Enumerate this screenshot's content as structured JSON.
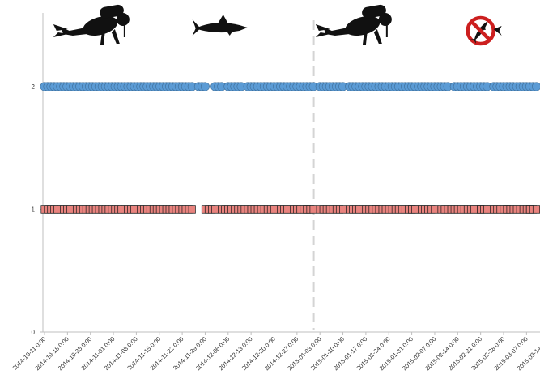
{
  "chart_data": {
    "type": "scatter",
    "xlim": [
      "2014-10-11",
      "2015-03-19"
    ],
    "ylim": [
      0,
      2.6
    ],
    "y_ticks": [
      "0",
      "1",
      "2"
    ],
    "x_tick_labels": [
      "2014-10-11 0:00",
      "2014-10-18 0:00",
      "2014-10-25 0:00",
      "2014-11-01 0:00",
      "2014-11-08 0:00",
      "2014-11-15 0:00",
      "2014-11-22 0:00",
      "2014-11-29 0:00",
      "2014-12-06 0:00",
      "2014-12-13 0:00",
      "2014-12-20 0:00",
      "2014-12-27 0:00",
      "2015-01-03 0:00",
      "2015-01-10 0:00",
      "2015-01-17 0:00",
      "2015-01-24 0:00",
      "2015-01-31 0:00",
      "2015-02-07 0:00",
      "2015-02-14 0:00",
      "2015-02-21 0:00",
      "2015-02-28 0:00",
      "2015-03-07 0:00",
      "2015-03-14 0:00"
    ],
    "grid": false,
    "divider_date": "2015-01-01",
    "series": [
      {
        "y": 2,
        "marker": "circle",
        "color": "#5b9bd5",
        "edge_color": "#41719c",
        "intervals": [
          [
            "2014-10-11",
            "2014-11-25"
          ],
          [
            "2014-11-27",
            "2014-11-29"
          ],
          [
            "2014-12-02",
            "2014-12-04"
          ],
          [
            "2014-12-06",
            "2014-12-10"
          ],
          [
            "2014-12-12",
            "2015-01-01"
          ],
          [
            "2015-01-03",
            "2015-01-10"
          ],
          [
            "2015-01-12",
            "2015-01-23"
          ],
          [
            "2015-01-24",
            "2015-01-31"
          ],
          [
            "2015-02-01",
            "2015-02-07"
          ],
          [
            "2015-02-08",
            "2015-02-11"
          ],
          [
            "2015-02-13",
            "2015-02-16"
          ],
          [
            "2015-02-17",
            "2015-02-23"
          ],
          [
            "2015-02-25",
            "2015-03-04"
          ],
          [
            "2015-03-05",
            "2015-03-10"
          ],
          [
            "2015-03-17",
            "2015-03-19"
          ]
        ]
      },
      {
        "y": 1,
        "marker": "square",
        "color": "#e8837e",
        "edge_color": "#1a1a1a",
        "intervals": [
          [
            "2014-10-11",
            "2014-11-21"
          ],
          [
            "2014-11-22",
            "2014-11-25"
          ],
          [
            "2014-11-29",
            "2014-12-02"
          ],
          [
            "2014-12-04",
            "2014-12-30"
          ],
          [
            "2014-12-30",
            "2015-01-01"
          ],
          [
            "2015-01-03",
            "2015-01-10"
          ],
          [
            "2015-01-12",
            "2015-01-20"
          ],
          [
            "2015-01-20",
            "2015-01-31"
          ],
          [
            "2015-01-31",
            "2015-02-07"
          ],
          [
            "2015-02-09",
            "2015-02-21"
          ],
          [
            "2015-02-21",
            "2015-03-01"
          ],
          [
            "2015-03-01",
            "2015-03-08"
          ],
          [
            "2015-03-08",
            "2015-03-10"
          ],
          [
            "2015-03-17",
            "2015-03-19"
          ]
        ]
      }
    ],
    "icons": [
      {
        "name": "scuba-diver-icon",
        "date": "2014-10-28"
      },
      {
        "name": "shark-icon",
        "date": "2014-12-04"
      },
      {
        "name": "scuba-diver-icon",
        "date": "2015-01-16"
      },
      {
        "name": "no-shark-icon",
        "date": "2015-02-21"
      }
    ]
  }
}
